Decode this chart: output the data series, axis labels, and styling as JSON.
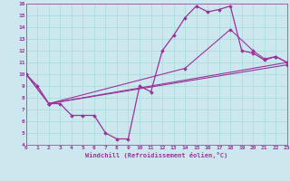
{
  "xlabel": "Windchill (Refroidissement éolien,°C)",
  "xlim": [
    0,
    23
  ],
  "ylim": [
    4,
    16
  ],
  "xticks": [
    0,
    1,
    2,
    3,
    4,
    5,
    6,
    7,
    8,
    9,
    10,
    11,
    12,
    13,
    14,
    15,
    16,
    17,
    18,
    19,
    20,
    21,
    22,
    23
  ],
  "yticks": [
    4,
    5,
    6,
    7,
    8,
    9,
    10,
    11,
    12,
    13,
    14,
    15,
    16
  ],
  "bg_color": "#cce8ee",
  "line_color": "#993399",
  "grid_color": "#aadddd",
  "lines": [
    {
      "x": [
        0,
        1,
        2,
        3,
        4,
        5,
        6,
        7,
        8,
        9,
        10,
        11,
        12,
        13,
        14,
        15,
        16,
        17,
        18,
        19,
        20,
        21,
        22,
        23
      ],
      "y": [
        10,
        9,
        7.5,
        7.5,
        6.5,
        6.5,
        6.5,
        5,
        4.5,
        4.5,
        9,
        8.5,
        12,
        13.3,
        14.8,
        15.8,
        15.3,
        15.5,
        15.8,
        12,
        11.8,
        11.2,
        11.5,
        11
      ]
    },
    {
      "x": [
        0,
        2,
        23
      ],
      "y": [
        10,
        7.5,
        11
      ]
    },
    {
      "x": [
        0,
        2,
        23
      ],
      "y": [
        10,
        7.5,
        10.8
      ]
    },
    {
      "x": [
        2,
        14,
        18,
        20,
        21,
        22,
        23
      ],
      "y": [
        7.5,
        10.5,
        13.8,
        12,
        11.3,
        11.5,
        11
      ]
    }
  ]
}
